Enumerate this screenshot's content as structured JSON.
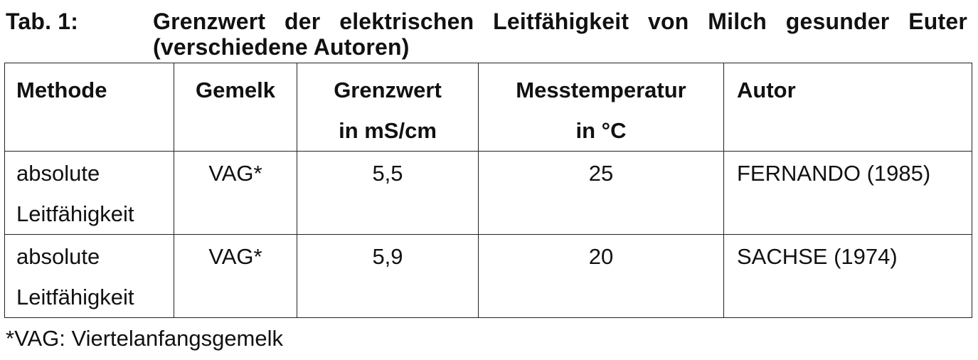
{
  "caption": {
    "label": "Tab. 1:",
    "text": "Grenzwert der elektrischen Leitfähigkeit von Milch gesunder Euter (verschiedene Autoren)"
  },
  "table": {
    "headers": {
      "methode": "Methode",
      "gemelk": "Gemelk",
      "grenzwert_line1": "Grenzwert",
      "grenzwert_line2": "in mS/cm",
      "messtemperatur_line1": "Messtemperatur",
      "messtemperatur_line2": "in °C",
      "autor": "Autor"
    },
    "rows": [
      {
        "methode_line1": "absolute",
        "methode_line2": "Leitfähigkeit",
        "gemelk": "VAG*",
        "grenzwert": "5,5",
        "messtemperatur": "25",
        "autor": "FERNANDO (1985)"
      },
      {
        "methode_line1": "absolute",
        "methode_line2": "Leitfähigkeit",
        "gemelk": "VAG*",
        "grenzwert": "5,9",
        "messtemperatur": "20",
        "autor": "SACHSE (1974)"
      }
    ]
  },
  "footnote": "*VAG: Viertelanfangsgemelk"
}
